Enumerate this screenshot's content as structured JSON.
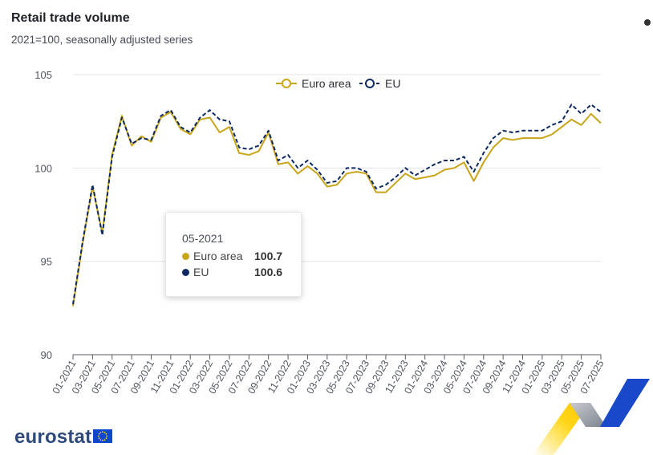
{
  "header": {
    "title": "Retail trade volume",
    "subtitle": "2021=100, seasonally adjusted series"
  },
  "legend": {
    "items": [
      {
        "label": "Euro area",
        "color": "#c9a519"
      },
      {
        "label": "EU",
        "color": "#0f2a62"
      }
    ]
  },
  "tooltip": {
    "date": "05-2021",
    "rows": [
      {
        "name": "Euro area",
        "value": "100.7",
        "color": "#c9a519"
      },
      {
        "name": "EU",
        "value": "100.6",
        "color": "#0f2a62"
      }
    ]
  },
  "logo": {
    "text": "eurostat"
  },
  "chart_data": {
    "type": "line",
    "title": "Retail trade volume",
    "subtitle": "2021=100, seasonally adjusted series",
    "ylim": [
      90,
      105
    ],
    "yticks": [
      90,
      95,
      100,
      105
    ],
    "grid": true,
    "legend_position": "top",
    "x": [
      "01-2021",
      "02-2021",
      "03-2021",
      "04-2021",
      "05-2021",
      "06-2021",
      "07-2021",
      "08-2021",
      "09-2021",
      "10-2021",
      "11-2021",
      "12-2021",
      "01-2022",
      "02-2022",
      "03-2022",
      "04-2022",
      "05-2022",
      "06-2022",
      "07-2022",
      "08-2022",
      "09-2022",
      "10-2022",
      "11-2022",
      "12-2022",
      "01-2023",
      "02-2023",
      "03-2023",
      "04-2023",
      "05-2023",
      "06-2023",
      "07-2023",
      "08-2023",
      "09-2023",
      "10-2023",
      "11-2023",
      "12-2023",
      "01-2024",
      "02-2024",
      "03-2024",
      "04-2024",
      "05-2024",
      "06-2024",
      "07-2024",
      "08-2024",
      "09-2024",
      "10-2024",
      "11-2024",
      "12-2024",
      "01-2025",
      "02-2025",
      "03-2025",
      "04-2025",
      "05-2025",
      "06-2025",
      "07-2025"
    ],
    "xtick_labels": [
      "01-2021",
      "03-2021",
      "05-2021",
      "07-2021",
      "09-2021",
      "11-2021",
      "01-2022",
      "03-2022",
      "05-2022",
      "07-2022",
      "09-2022",
      "11-2022",
      "01-2023",
      "03-2023",
      "05-2023",
      "07-2023",
      "09-2023",
      "11-2023",
      "01-2024",
      "03-2024",
      "05-2024",
      "07-2024",
      "09-2024",
      "11-2024",
      "01-2025",
      "03-2025",
      "05-2025",
      "07-2025"
    ],
    "series": [
      {
        "name": "Euro area",
        "color": "#c9a519",
        "style": "solid",
        "values": [
          92.6,
          96.0,
          99.0,
          96.5,
          100.7,
          102.8,
          101.2,
          101.7,
          101.4,
          102.7,
          103.0,
          102.1,
          101.8,
          102.6,
          102.7,
          101.9,
          102.2,
          100.8,
          100.7,
          100.9,
          101.9,
          100.2,
          100.3,
          99.7,
          100.1,
          99.7,
          99.0,
          99.1,
          99.7,
          99.8,
          99.7,
          98.7,
          98.7,
          99.2,
          99.7,
          99.4,
          99.5,
          99.6,
          99.9,
          100.0,
          100.3,
          99.3,
          100.3,
          101.1,
          101.6,
          101.5,
          101.6,
          101.6,
          101.6,
          101.8,
          102.2,
          102.6,
          102.3,
          102.9,
          102.4
        ]
      },
      {
        "name": "EU",
        "color": "#0f2a62",
        "style": "dashed",
        "values": [
          92.7,
          96.1,
          99.1,
          96.4,
          100.6,
          102.7,
          101.3,
          101.6,
          101.5,
          102.8,
          103.1,
          102.2,
          101.9,
          102.7,
          103.1,
          102.6,
          102.5,
          101.1,
          101.0,
          101.2,
          102.0,
          100.4,
          100.7,
          100.0,
          100.4,
          99.9,
          99.2,
          99.3,
          100.0,
          100.0,
          99.8,
          98.9,
          99.1,
          99.5,
          100.0,
          99.6,
          99.9,
          100.2,
          100.4,
          100.4,
          100.6,
          99.8,
          100.8,
          101.6,
          102.0,
          101.9,
          102.0,
          102.0,
          102.0,
          102.3,
          102.5,
          103.4,
          102.9,
          103.4,
          103.0
        ]
      }
    ]
  }
}
